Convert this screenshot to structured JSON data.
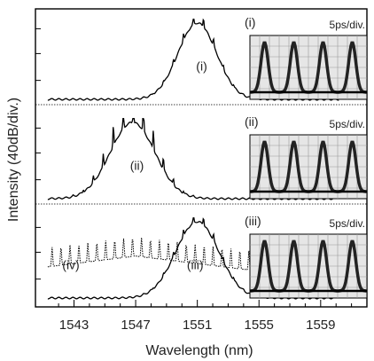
{
  "chart_data": {
    "type": "line",
    "xlabel": "Wavelength (nm)",
    "ylabel": "Intensity (40dB/div.)",
    "xlim": [
      1540.5,
      1562
    ],
    "xticks": [
      "1543",
      "1547",
      "1551",
      "1555",
      "1559"
    ],
    "panels": [
      {
        "label": "(i)",
        "series": [
          {
            "label": "(i)",
            "center": 1551.0,
            "width": 1.25,
            "style": "solid",
            "ripple": 0.7,
            "floor_end": 1560.2
          }
        ],
        "inset": {
          "label": "(i)",
          "scale": "5ps/div.",
          "pulses": 4
        }
      },
      {
        "label": "(ii)",
        "series": [
          {
            "label": "(ii)",
            "center": 1546.8,
            "width": 1.45,
            "style": "solid",
            "ripple": 2.2,
            "floor_end": 1560.0
          }
        ],
        "inset": {
          "label": "(ii)",
          "scale": "5ps/div.",
          "pulses": 4
        }
      },
      {
        "label": "(iii)",
        "series": [
          {
            "label": "(iv)",
            "center": 1547.0,
            "width": 10.0,
            "style": "dotted",
            "ripple": 3.0,
            "floor_end": 1560.0
          },
          {
            "label": "(iii)",
            "center": 1551.0,
            "width": 1.4,
            "style": "solid",
            "ripple": 0.6,
            "floor_end": 1560.0
          }
        ],
        "inset": {
          "label": "(iii)",
          "scale": "5ps/div.",
          "pulses": 4
        }
      }
    ],
    "grid": false,
    "legend": "none"
  }
}
